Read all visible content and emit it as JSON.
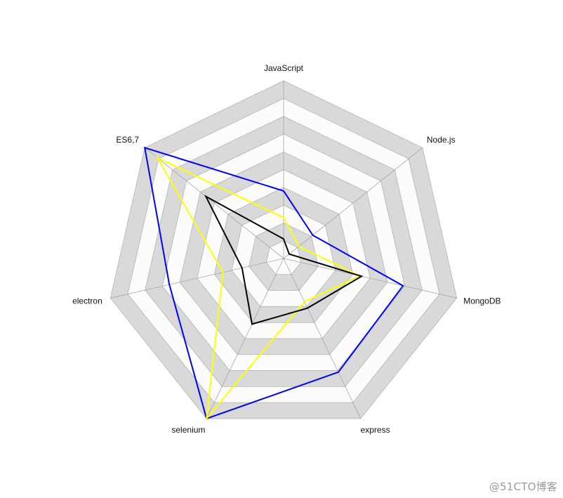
{
  "chart_data": {
    "type": "radar",
    "axes": [
      "JavaScript",
      "Node.js",
      "MongoDB",
      "express",
      "selenium",
      "electron",
      "ES6,7"
    ],
    "range": [
      0,
      10
    ],
    "rings": 10,
    "grid_colors": [
      "#d9d9d9",
      "#fcfcfc"
    ],
    "series": [
      {
        "color": "#0000ff",
        "values": [
          3.8,
          2.1,
          6.9,
          7.1,
          10.0,
          6.6,
          10.0
        ]
      },
      {
        "color": "#ffff00",
        "values": [
          2.3,
          1.1,
          4.4,
          2.7,
          10.0,
          3.5,
          9.1
        ]
      },
      {
        "color": "#000000",
        "values": [
          1.1,
          0.4,
          4.5,
          3.1,
          4.1,
          2.4,
          5.6
        ]
      }
    ]
  },
  "watermark": "@51CTO博客"
}
